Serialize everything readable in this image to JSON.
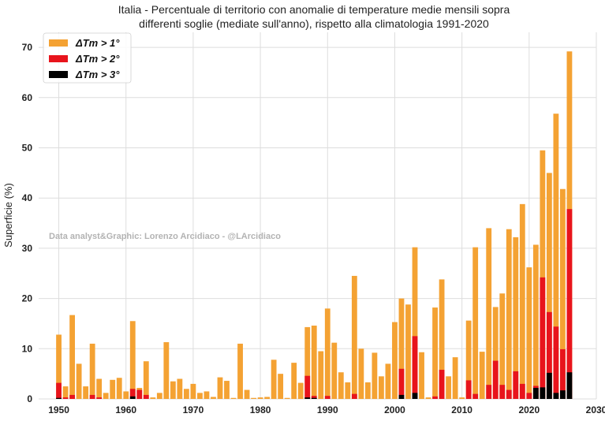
{
  "chart_data": {
    "type": "bar",
    "title_line1": "Italia - Percentuale di territorio con anomalie di temperature medie mensili sopra",
    "title_line2": "differenti soglie (mediate sull'anno), rispetto alla climatologia 1991-2020",
    "xlabel": "",
    "ylabel": "Superficie (%)",
    "annotation": "Data analyst&Graphic: Lorenzo Arcidiaco - @LArcidiaco",
    "xlim": [
      1947,
      2030
    ],
    "ylim": [
      0,
      73
    ],
    "xticks": [
      1950,
      1960,
      1970,
      1980,
      1990,
      2000,
      2010,
      2020,
      2030
    ],
    "yticks": [
      0,
      10,
      20,
      30,
      40,
      50,
      60,
      70
    ],
    "grid": true,
    "legend_position": "top-left",
    "legend": [
      {
        "label": "ΔTm > 1°",
        "color": "#F4A233"
      },
      {
        "label": "ΔTm > 2°",
        "color": "#E8141C"
      },
      {
        "label": "ΔTm > 3°",
        "color": "#000000"
      }
    ],
    "x": [
      1950,
      1951,
      1952,
      1953,
      1954,
      1955,
      1956,
      1957,
      1958,
      1959,
      1960,
      1961,
      1962,
      1963,
      1964,
      1965,
      1966,
      1967,
      1968,
      1969,
      1970,
      1971,
      1972,
      1973,
      1974,
      1975,
      1976,
      1977,
      1978,
      1979,
      1980,
      1981,
      1982,
      1983,
      1984,
      1985,
      1986,
      1987,
      1988,
      1989,
      1990,
      1991,
      1992,
      1993,
      1994,
      1995,
      1996,
      1997,
      1998,
      1999,
      2000,
      2001,
      2002,
      2003,
      2004,
      2005,
      2006,
      2007,
      2008,
      2009,
      2010,
      2011,
      2012,
      2013,
      2014,
      2015,
      2016,
      2017,
      2018,
      2019,
      2020,
      2021,
      2022,
      2023,
      2024,
      2025,
      2026
    ],
    "series": [
      {
        "name": "ΔTm > 1°",
        "color": "#F4A233",
        "values": [
          12.8,
          2.5,
          16.7,
          7.0,
          2.5,
          11.0,
          4.0,
          1.2,
          3.8,
          4.2,
          1.5,
          15.5,
          2.2,
          7.5,
          0.3,
          1.2,
          11.3,
          3.5,
          4.0,
          2.0,
          3.0,
          1.2,
          1.5,
          0.4,
          4.3,
          3.6,
          0.2,
          11.0,
          1.8,
          0.2,
          0.3,
          0.4,
          7.8,
          5.0,
          0.2,
          7.2,
          3.2,
          14.3,
          14.6,
          9.5,
          18.0,
          11.2,
          5.3,
          3.3,
          24.5,
          10.0,
          3.3,
          9.2,
          4.5,
          7.0,
          15.3,
          20.0,
          18.8,
          30.2,
          9.3,
          0.3,
          18.2,
          23.8,
          4.5,
          8.3,
          0.3,
          15.6,
          30.2,
          9.4,
          34.0,
          18.3,
          21.0,
          33.8,
          32.2,
          38.8,
          26.2,
          30.7,
          49.5,
          45.0,
          56.8,
          41.8,
          69.2
        ]
      },
      {
        "name": "ΔTm > 2°",
        "color": "#E8141C",
        "values": [
          3.2,
          0.3,
          0.8,
          0,
          0,
          0.8,
          0.3,
          0,
          0,
          0,
          0,
          2.0,
          1.8,
          0.8,
          0,
          0,
          0,
          0,
          0,
          0,
          0,
          0,
          0,
          0,
          0,
          0,
          0,
          0,
          0,
          0,
          0,
          0,
          0,
          0,
          0,
          0,
          0,
          4.6,
          0.6,
          0,
          0.6,
          0,
          0,
          0,
          1.0,
          0,
          0,
          0,
          0,
          0,
          0,
          6.0,
          0,
          12.5,
          0,
          0,
          0.5,
          5.8,
          0,
          0,
          0,
          3.7,
          1.0,
          0,
          2.8,
          7.6,
          2.8,
          1.8,
          5.5,
          3.0,
          1.2,
          2.6,
          24.2,
          17.3,
          14.4,
          9.9,
          37.8
        ]
      },
      {
        "name": "ΔTm > 3°",
        "color": "#000000",
        "values": [
          0.2,
          0,
          0,
          0,
          0,
          0,
          0,
          0,
          0,
          0,
          0,
          0.5,
          0,
          0,
          0,
          0,
          0,
          0,
          0,
          0,
          0,
          0,
          0,
          0,
          0,
          0,
          0,
          0,
          0,
          0,
          0,
          0,
          0,
          0,
          0,
          0,
          0,
          0.3,
          0.2,
          0,
          0,
          0,
          0,
          0,
          0,
          0,
          0,
          0,
          0,
          0,
          0,
          0.8,
          0,
          1.2,
          0,
          0,
          0,
          0,
          0,
          0,
          0,
          0,
          0,
          0,
          0,
          0,
          0,
          0,
          0,
          0,
          0,
          2.2,
          2.3,
          5.2,
          1.2,
          1.7,
          5.3
        ]
      }
    ]
  }
}
